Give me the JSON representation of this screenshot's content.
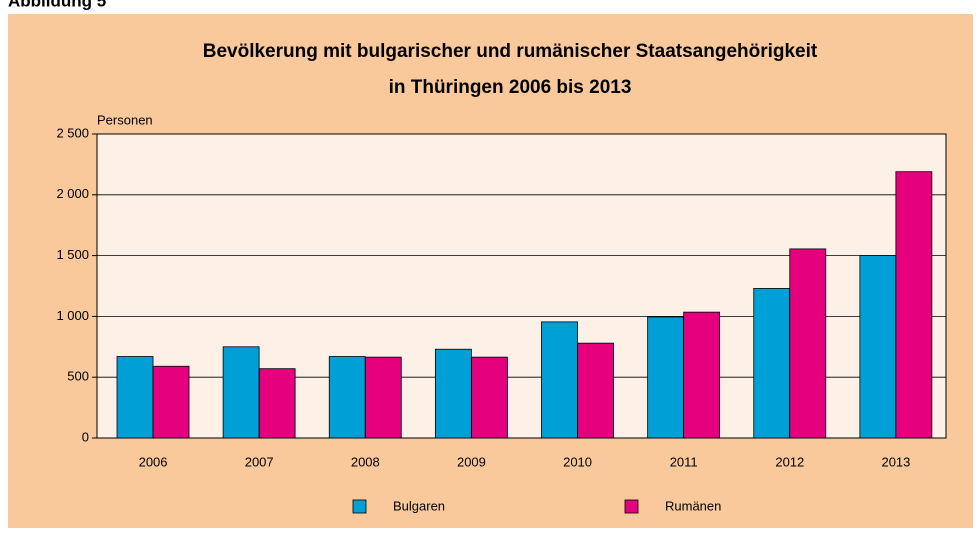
{
  "figure_label": "Abbildung 5",
  "chart_data": {
    "type": "bar",
    "title": [
      "Bevölkerung mit bulgarischer und rumänischer Staatsangehörigkeit",
      "in Thüringen 2006 bis 2013"
    ],
    "y_label": "Personen",
    "categories": [
      "2006",
      "2007",
      "2008",
      "2009",
      "2010",
      "2011",
      "2012",
      "2013"
    ],
    "series": [
      {
        "name": "Bulgaren",
        "color": "#00a0d6",
        "values": [
          670,
          750,
          670,
          730,
          955,
          995,
          1230,
          1500
        ]
      },
      {
        "name": "Rumänen",
        "color": "#e5007e",
        "values": [
          590,
          570,
          665,
          665,
          780,
          1035,
          1555,
          2190
        ]
      }
    ],
    "ylim": [
      0,
      2500
    ],
    "yticks": [
      0,
      500,
      {
        "value": 1000,
        "label": "1 000"
      },
      {
        "value": 1500,
        "label": "1 500"
      },
      {
        "value": 2000,
        "label": "2 000"
      },
      {
        "value": 2500,
        "label": "2 500"
      }
    ],
    "grid": true
  }
}
